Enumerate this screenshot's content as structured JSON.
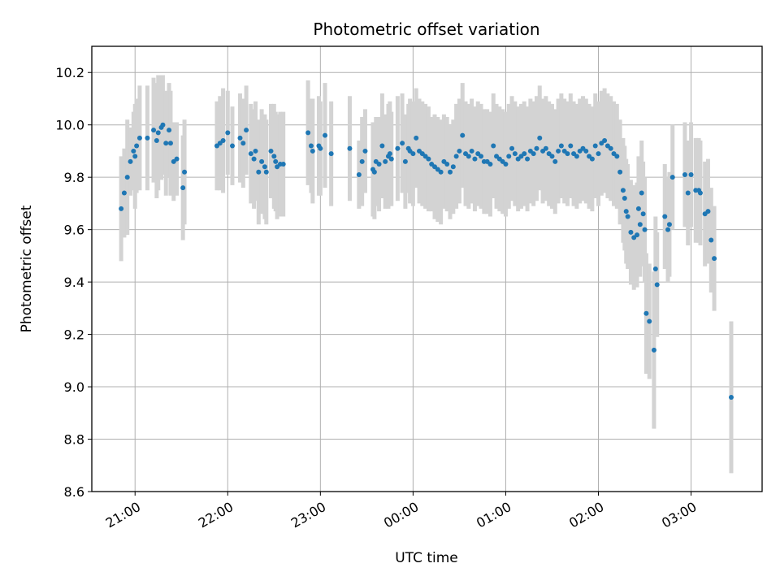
{
  "chart_data": {
    "type": "scatter",
    "title": "Photometric offset variation",
    "xlabel": "UTC time",
    "ylabel": "Photometric offset",
    "x_unit": "UTC time (HH:MM), times after midnight on following day",
    "xlim": [
      "20:32",
      "27:46"
    ],
    "ylim": [
      8.6,
      10.3
    ],
    "y_ticks": [
      8.6,
      8.8,
      9.0,
      9.2,
      9.4,
      9.6,
      9.8,
      10.0,
      10.2
    ],
    "x_ticks": [
      "21:00",
      "22:00",
      "23:00",
      "00:00",
      "01:00",
      "02:00",
      "03:00"
    ],
    "grid": true,
    "legend": "none",
    "colors": {
      "point": "#1f77b4",
      "errorbar": "#d3d3d3",
      "grid": "#b0b0b0",
      "axes": "#000000"
    },
    "points": [
      [
        "20:51",
        9.68,
        0.2
      ],
      [
        "20:53",
        9.74,
        0.17
      ],
      [
        "20:55",
        9.8,
        0.22
      ],
      [
        "20:57",
        9.86,
        0.13
      ],
      [
        "20:59",
        9.9,
        0.15
      ],
      [
        "21:00",
        9.88,
        0.2
      ],
      [
        "21:01",
        9.92,
        0.18
      ],
      [
        "21:03",
        9.95,
        0.2
      ],
      [
        "21:08",
        9.95,
        0.2
      ],
      [
        "21:12",
        9.98,
        0.2
      ],
      [
        "21:14",
        9.94,
        0.22
      ],
      [
        "21:15",
        9.97,
        0.22
      ],
      [
        "21:17",
        9.99,
        0.2
      ],
      [
        "21:18",
        10.0,
        0.19
      ],
      [
        "21:20",
        9.93,
        0.2
      ],
      [
        "21:22",
        9.98,
        0.18
      ],
      [
        "21:23",
        9.93,
        0.2
      ],
      [
        "21:25",
        9.86,
        0.15
      ],
      [
        "21:27",
        9.87,
        0.14
      ],
      [
        "21:31",
        9.76,
        0.2
      ],
      [
        "21:32",
        9.82,
        0.2
      ],
      [
        "21:53",
        9.92,
        0.17
      ],
      [
        "21:55",
        9.93,
        0.18
      ],
      [
        "21:57",
        9.94,
        0.2
      ],
      [
        "22:00",
        9.97,
        0.16
      ],
      [
        "22:03",
        9.92,
        0.15
      ],
      [
        "22:08",
        9.95,
        0.17
      ],
      [
        "22:10",
        9.93,
        0.17
      ],
      [
        "22:12",
        9.98,
        0.17
      ],
      [
        "22:15",
        9.89,
        0.19
      ],
      [
        "22:17",
        9.87,
        0.19
      ],
      [
        "22:18",
        9.9,
        0.19
      ],
      [
        "22:20",
        9.82,
        0.2
      ],
      [
        "22:22",
        9.86,
        0.2
      ],
      [
        "22:24",
        9.84,
        0.2
      ],
      [
        "22:25",
        9.82,
        0.2
      ],
      [
        "22:28",
        9.9,
        0.18
      ],
      [
        "22:30",
        9.88,
        0.2
      ],
      [
        "22:31",
        9.86,
        0.19
      ],
      [
        "22:32",
        9.84,
        0.2
      ],
      [
        "22:34",
        9.85,
        0.2
      ],
      [
        "22:36",
        9.85,
        0.2
      ],
      [
        "22:52",
        9.97,
        0.2
      ],
      [
        "22:54",
        9.92,
        0.18
      ],
      [
        "22:55",
        9.9,
        0.2
      ],
      [
        "22:59",
        9.92,
        0.19
      ],
      [
        "23:00",
        9.91,
        0.18
      ],
      [
        "23:03",
        9.96,
        0.2
      ],
      [
        "23:07",
        9.89,
        0.2
      ],
      [
        "23:19",
        9.91,
        0.2
      ],
      [
        "23:25",
        9.81,
        0.13
      ],
      [
        "23:27",
        9.86,
        0.17
      ],
      [
        "23:29",
        9.9,
        0.16
      ],
      [
        "23:34",
        9.83,
        0.18
      ],
      [
        "23:35",
        9.82,
        0.18
      ],
      [
        "23:36",
        9.86,
        0.17
      ],
      [
        "23:38",
        9.85,
        0.18
      ],
      [
        "23:40",
        9.92,
        0.2
      ],
      [
        "23:42",
        9.86,
        0.18
      ],
      [
        "23:44",
        9.88,
        0.2
      ],
      [
        "23:45",
        9.89,
        0.2
      ],
      [
        "23:46",
        9.87,
        0.18
      ],
      [
        "23:50",
        9.91,
        0.2
      ],
      [
        "23:53",
        9.93,
        0.19
      ],
      [
        "23:55",
        9.86,
        0.18
      ],
      [
        "23:57",
        9.91,
        0.17
      ],
      [
        "23:58",
        9.9,
        0.2
      ],
      [
        "24:00",
        9.89,
        0.2
      ],
      [
        "24:02",
        9.95,
        0.19
      ],
      [
        "24:04",
        9.9,
        0.2
      ],
      [
        "24:06",
        9.89,
        0.2
      ],
      [
        "24:08",
        9.88,
        0.2
      ],
      [
        "24:10",
        9.87,
        0.2
      ],
      [
        "24:12",
        9.85,
        0.18
      ],
      [
        "24:14",
        9.84,
        0.2
      ],
      [
        "24:16",
        9.83,
        0.2
      ],
      [
        "24:18",
        9.82,
        0.2
      ],
      [
        "24:20",
        9.86,
        0.18
      ],
      [
        "24:22",
        9.85,
        0.18
      ],
      [
        "24:24",
        9.82,
        0.18
      ],
      [
        "24:26",
        9.84,
        0.18
      ],
      [
        "24:28",
        9.88,
        0.2
      ],
      [
        "24:30",
        9.9,
        0.2
      ],
      [
        "24:32",
        9.96,
        0.2
      ],
      [
        "24:34",
        9.89,
        0.2
      ],
      [
        "24:36",
        9.88,
        0.2
      ],
      [
        "24:38",
        9.9,
        0.2
      ],
      [
        "24:40",
        9.87,
        0.2
      ],
      [
        "24:42",
        9.89,
        0.2
      ],
      [
        "24:44",
        9.88,
        0.2
      ],
      [
        "24:46",
        9.86,
        0.2
      ],
      [
        "24:48",
        9.86,
        0.2
      ],
      [
        "24:50",
        9.85,
        0.2
      ],
      [
        "24:52",
        9.92,
        0.2
      ],
      [
        "24:54",
        9.88,
        0.2
      ],
      [
        "24:56",
        9.87,
        0.2
      ],
      [
        "24:58",
        9.86,
        0.2
      ],
      [
        "25:00",
        9.85,
        0.2
      ],
      [
        "25:02",
        9.88,
        0.2
      ],
      [
        "25:04",
        9.91,
        0.2
      ],
      [
        "25:06",
        9.89,
        0.2
      ],
      [
        "25:08",
        9.87,
        0.2
      ],
      [
        "25:10",
        9.88,
        0.2
      ],
      [
        "25:12",
        9.89,
        0.2
      ],
      [
        "25:14",
        9.87,
        0.2
      ],
      [
        "25:16",
        9.9,
        0.2
      ],
      [
        "25:18",
        9.89,
        0.2
      ],
      [
        "25:20",
        9.91,
        0.2
      ],
      [
        "25:22",
        9.95,
        0.2
      ],
      [
        "25:24",
        9.9,
        0.2
      ],
      [
        "25:26",
        9.91,
        0.2
      ],
      [
        "25:28",
        9.89,
        0.2
      ],
      [
        "25:30",
        9.88,
        0.2
      ],
      [
        "25:32",
        9.86,
        0.2
      ],
      [
        "25:34",
        9.9,
        0.2
      ],
      [
        "25:36",
        9.92,
        0.2
      ],
      [
        "25:38",
        9.9,
        0.2
      ],
      [
        "25:40",
        9.89,
        0.2
      ],
      [
        "25:42",
        9.92,
        0.2
      ],
      [
        "25:44",
        9.89,
        0.2
      ],
      [
        "25:46",
        9.88,
        0.2
      ],
      [
        "25:48",
        9.9,
        0.2
      ],
      [
        "25:50",
        9.91,
        0.2
      ],
      [
        "25:52",
        9.9,
        0.2
      ],
      [
        "25:54",
        9.88,
        0.2
      ],
      [
        "25:56",
        9.87,
        0.2
      ],
      [
        "25:58",
        9.92,
        0.2
      ],
      [
        "26:00",
        9.89,
        0.2
      ],
      [
        "26:02",
        9.93,
        0.2
      ],
      [
        "26:04",
        9.94,
        0.2
      ],
      [
        "26:06",
        9.92,
        0.2
      ],
      [
        "26:08",
        9.91,
        0.2
      ],
      [
        "26:10",
        9.89,
        0.2
      ],
      [
        "26:12",
        9.88,
        0.2
      ],
      [
        "26:14",
        9.82,
        0.2
      ],
      [
        "26:16",
        9.75,
        0.2
      ],
      [
        "26:17",
        9.72,
        0.2
      ],
      [
        "26:18",
        9.67,
        0.2
      ],
      [
        "26:19",
        9.65,
        0.2
      ],
      [
        "26:21",
        9.59,
        0.2
      ],
      [
        "26:23",
        9.57,
        0.2
      ],
      [
        "26:25",
        9.58,
        0.2
      ],
      [
        "26:26",
        9.68,
        0.2
      ],
      [
        "26:27",
        9.62,
        0.2
      ],
      [
        "26:28",
        9.74,
        0.2
      ],
      [
        "26:29",
        9.66,
        0.2
      ],
      [
        "26:30",
        9.6,
        0.2
      ],
      [
        "26:31",
        9.28,
        0.23
      ],
      [
        "26:33",
        9.25,
        0.22
      ],
      [
        "26:36",
        9.14,
        0.3
      ],
      [
        "26:37",
        9.45,
        0.2
      ],
      [
        "26:38",
        9.39,
        0.2
      ],
      [
        "26:43",
        9.65,
        0.2
      ],
      [
        "26:45",
        9.6,
        0.2
      ],
      [
        "26:46",
        9.62,
        0.2
      ],
      [
        "26:48",
        9.8,
        0.2
      ],
      [
        "26:56",
        9.81,
        0.2
      ],
      [
        "26:58",
        9.74,
        0.2
      ],
      [
        "27:00",
        9.81,
        0.2
      ],
      [
        "27:03",
        9.75,
        0.2
      ],
      [
        "27:05",
        9.75,
        0.2
      ],
      [
        "27:06",
        9.74,
        0.2
      ],
      [
        "27:09",
        9.66,
        0.2
      ],
      [
        "27:11",
        9.67,
        0.2
      ],
      [
        "27:13",
        9.56,
        0.2
      ],
      [
        "27:15",
        9.49,
        0.2
      ],
      [
        "27:26",
        8.96,
        0.29
      ]
    ]
  }
}
